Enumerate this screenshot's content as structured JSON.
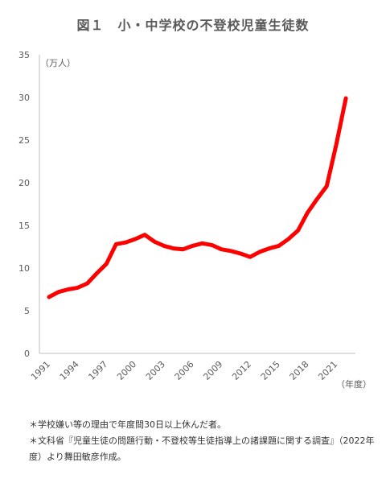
{
  "chart_data": {
    "type": "line",
    "title": "図１　小・中学校の不登校児童生徒数",
    "ylabel": "（万人）",
    "xlabel": "（年度）",
    "ylim": [
      0,
      35
    ],
    "yticks": [
      0,
      5,
      10,
      15,
      20,
      25,
      30,
      35
    ],
    "xticks": [
      1991,
      1994,
      1997,
      2000,
      2003,
      2006,
      2009,
      2012,
      2015,
      2018,
      2021
    ],
    "grid": false,
    "color": "#ff0000",
    "series": [
      {
        "x": [
          1991,
          1992,
          1993,
          1994,
          1995,
          1996,
          1997,
          1998,
          1999,
          2000,
          2001,
          2002,
          2003,
          2004,
          2005,
          2006,
          2007,
          2008,
          2009,
          2010,
          2011,
          2012,
          2013,
          2014,
          2015,
          2016,
          2017,
          2018,
          2019,
          2020,
          2021,
          2022
        ],
        "values": [
          6.6,
          7.2,
          7.5,
          7.7,
          8.2,
          9.4,
          10.5,
          12.8,
          13.0,
          13.4,
          13.9,
          13.1,
          12.6,
          12.3,
          12.2,
          12.6,
          12.9,
          12.7,
          12.2,
          12.0,
          11.7,
          11.3,
          11.9,
          12.3,
          12.6,
          13.4,
          14.4,
          16.5,
          18.1,
          19.6,
          24.5,
          29.9
        ]
      }
    ]
  },
  "notes": [
    "＊学校嫌い等の理由で年度間30日以上休んだ者。",
    "＊文科省『児童生徒の問題行動・不登校等生徒指導上の諸課題に関する調査』（2022年度）より舞田敏彦作成。"
  ]
}
